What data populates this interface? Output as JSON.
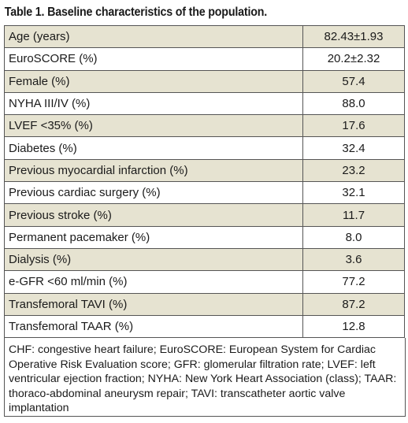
{
  "title": "Table 1. Baseline characteristics of the population.",
  "rows": [
    {
      "label": "Age (years)",
      "value": "82.43±1.93"
    },
    {
      "label": "EuroSCORE (%)",
      "value": "20.2±2.32"
    },
    {
      "label": "Female (%)",
      "value": "57.4"
    },
    {
      "label": "NYHA III/IV (%)",
      "value": "88.0"
    },
    {
      "label": "LVEF <35% (%)",
      "value": "17.6"
    },
    {
      "label": "Diabetes (%)",
      "value": "32.4"
    },
    {
      "label": "Previous myocardial infarction (%)",
      "value": "23.2"
    },
    {
      "label": "Previous cardiac surgery (%)",
      "value": "32.1"
    },
    {
      "label": "Previous stroke (%)",
      "value": "11.7"
    },
    {
      "label": "Permanent pacemaker (%)",
      "value": "8.0"
    },
    {
      "label": "Dialysis (%)",
      "value": "3.6"
    },
    {
      "label": "e-GFR <60 ml/min (%)",
      "value": "77.2"
    },
    {
      "label": "Transfemoral TAVI (%)",
      "value": "87.2"
    },
    {
      "label": "Transfemoral TAAR (%)",
      "value": "12.8"
    }
  ],
  "footnote": "CHF: congestive heart failure; EuroSCORE: European System for Cardiac Operative Risk Evaluation score; GFR: glomerular filtration rate; LVEF: left ventricular ejection fraction; NYHA: New York Heart Association (class); TAAR: thoraco-abdominal aneurysm repair; TAVI: transcatheter aortic valve implantation",
  "colors": {
    "shade": "#e6e3d1",
    "border": "#555555"
  }
}
